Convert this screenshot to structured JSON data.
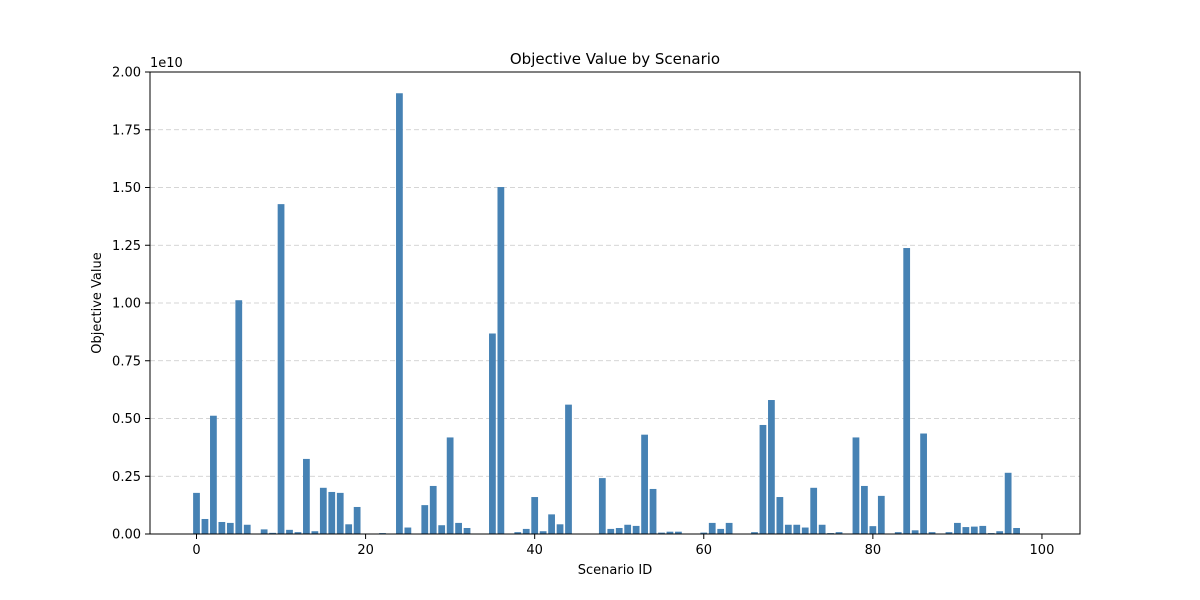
{
  "chart_data": {
    "type": "bar",
    "title": "Objective Value by Scenario",
    "xlabel": "Scenario ID",
    "ylabel": "Objective Value",
    "y_offset_text": "1e10",
    "y_scale": 10000000000.0,
    "xlim": [
      -5.5,
      104.5
    ],
    "ylim": [
      0,
      2.0
    ],
    "x_ticks": [
      0,
      20,
      40,
      60,
      80,
      100
    ],
    "x_tick_labels": [
      "0",
      "20",
      "40",
      "60",
      "80",
      "100"
    ],
    "y_ticks": [
      0,
      0.25,
      0.5,
      0.75,
      1.0,
      1.25,
      1.5,
      1.75,
      2.0
    ],
    "y_tick_labels": [
      "0.00",
      "0.25",
      "0.50",
      "0.75",
      "1.00",
      "1.25",
      "1.50",
      "1.75",
      "2.00"
    ],
    "grid": "horizontal-dashed",
    "bar_color": "#4682b4",
    "x": [
      0,
      1,
      2,
      3,
      4,
      5,
      6,
      7,
      8,
      9,
      10,
      11,
      12,
      13,
      14,
      15,
      16,
      17,
      18,
      19,
      20,
      21,
      22,
      23,
      24,
      25,
      26,
      27,
      28,
      29,
      30,
      31,
      32,
      33,
      34,
      35,
      36,
      37,
      38,
      39,
      40,
      41,
      42,
      43,
      44,
      45,
      46,
      47,
      48,
      49,
      50,
      51,
      52,
      53,
      54,
      55,
      56,
      57,
      58,
      59,
      60,
      61,
      62,
      63,
      64,
      65,
      66,
      67,
      68,
      69,
      70,
      71,
      72,
      73,
      74,
      75,
      76,
      77,
      78,
      79,
      80,
      81,
      82,
      83,
      84,
      85,
      86,
      87,
      88,
      89,
      90,
      91,
      92,
      93,
      94,
      95,
      96,
      97,
      98,
      99
    ],
    "values": [
      0.178,
      0.065,
      0.512,
      0.052,
      0.048,
      1.012,
      0.04,
      0.0,
      0.02,
      0.005,
      1.428,
      0.018,
      0.008,
      0.325,
      0.012,
      0.2,
      0.182,
      0.178,
      0.042,
      0.117,
      0.0,
      0.0,
      0.004,
      0.0,
      1.908,
      0.028,
      0.0,
      0.125,
      0.208,
      0.038,
      0.418,
      0.048,
      0.026,
      0.0,
      0.0,
      0.868,
      1.502,
      0.0,
      0.008,
      0.022,
      0.16,
      0.012,
      0.085,
      0.042,
      0.56,
      0.0,
      0.0,
      0.0,
      0.242,
      0.022,
      0.026,
      0.04,
      0.035,
      0.43,
      0.195,
      0.006,
      0.01,
      0.01,
      0.0,
      0.0,
      0.006,
      0.048,
      0.022,
      0.048,
      0.0,
      0.0,
      0.008,
      0.472,
      0.58,
      0.16,
      0.04,
      0.04,
      0.028,
      0.2,
      0.04,
      0.004,
      0.008,
      0.0,
      0.418,
      0.208,
      0.034,
      0.165,
      0.0,
      0.008,
      1.238,
      0.016,
      0.435,
      0.008,
      0.0,
      0.008,
      0.048,
      0.03,
      0.032,
      0.035,
      0.004,
      0.012,
      0.265,
      0.026,
      0.0,
      0.0
    ]
  }
}
